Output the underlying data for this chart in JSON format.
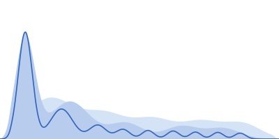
{
  "background_color": "#ffffff",
  "line_color": "#3366bb",
  "fill_color_1": "#b8ccee",
  "fill_color_2": "#d4e3f5",
  "line_width": 1.2,
  "figsize": [
    4.0,
    2.0
  ],
  "dpi": 100
}
